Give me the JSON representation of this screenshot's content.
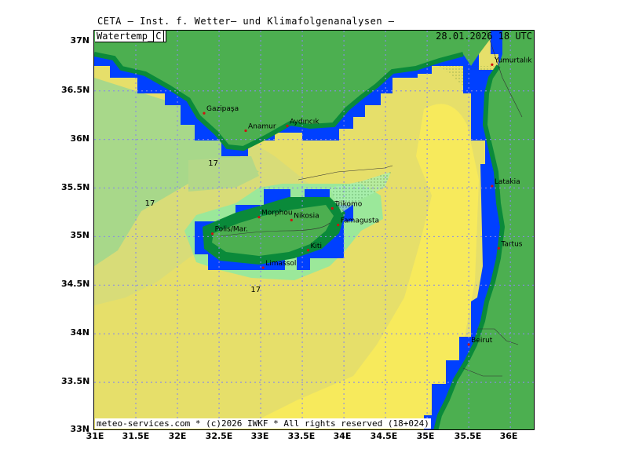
{
  "header": {
    "title": "CETA — Inst. f. Wetter— und Klimafolgenanalysen —",
    "param_label": "Watertemp",
    "unit": "C",
    "valid_time": "28.01.2026  18 UTC"
  },
  "footer": {
    "credit": "meteo-services.com * (c)2026 IWKF * All rights reserved (18+024)"
  },
  "axes": {
    "lat_labels": [
      "37N",
      "36.5N",
      "36N",
      "35.5N",
      "35N",
      "34.5N",
      "34N",
      "33.5N",
      "33N"
    ],
    "lon_labels": [
      "31E",
      "31.5E",
      "32E",
      "32.5E",
      "33E",
      "33.5E",
      "34E",
      "34.5E",
      "35E",
      "35.5E",
      "36E"
    ]
  },
  "places": [
    {
      "name": "Yumurtalık",
      "lon": 35.78,
      "lat": 36.77
    },
    {
      "name": "Gazipaşa",
      "lon": 32.32,
      "lat": 36.27
    },
    {
      "name": "Anamur",
      "lon": 32.82,
      "lat": 36.09
    },
    {
      "name": "Aydıncık",
      "lon": 33.32,
      "lat": 36.14
    },
    {
      "name": "Latakia",
      "lon": 35.78,
      "lat": 35.52
    },
    {
      "name": "Trikomo",
      "lon": 33.86,
      "lat": 35.29
    },
    {
      "name": "Morphou",
      "lon": 32.98,
      "lat": 35.2
    },
    {
      "name": "Nikosia",
      "lon": 33.37,
      "lat": 35.17
    },
    {
      "name": "Famagusta",
      "lon": 33.93,
      "lat": 35.12
    },
    {
      "name": "Polis/Mar.",
      "lon": 32.42,
      "lat": 35.03
    },
    {
      "name": "Kiti",
      "lon": 33.57,
      "lat": 34.86
    },
    {
      "name": "Tartus",
      "lon": 35.86,
      "lat": 34.88
    },
    {
      "name": "Limassol",
      "lon": 33.03,
      "lat": 34.68
    },
    {
      "name": "Beirut",
      "lon": 35.5,
      "lat": 33.89
    }
  ],
  "contour_labels": [
    {
      "text": "17",
      "lon": 32.43,
      "lat": 35.73
    },
    {
      "text": "17",
      "lon": 31.67,
      "lat": 35.32
    },
    {
      "text": "17",
      "lon": 32.94,
      "lat": 34.43
    }
  ],
  "colors": {
    "land": "#4caf50",
    "coast_dark": "#0a8a3a",
    "coast_blue": "#0040ff",
    "sea_warm": "#f5e85a",
    "sea_mid": "#e6df6a",
    "sea_cool": "#c8d87a",
    "sea_cold": "#a8d88a",
    "grid": "#8a8ae8"
  }
}
